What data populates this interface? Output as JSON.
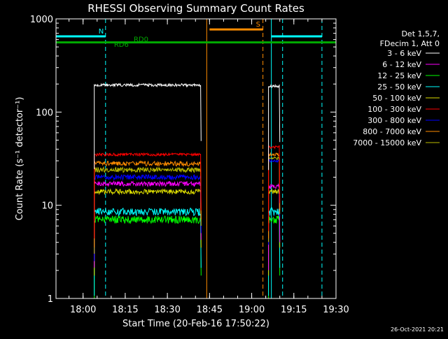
{
  "chart_data": {
    "type": "line",
    "title": "RHESSI Observing Summary Count Rates",
    "xlabel": "Start Time (20-Feb-16 17:50:22)",
    "ylabel": "Count Rate (s⁻¹ detector⁻¹)",
    "y_scale": "log",
    "ylim": [
      1,
      1000
    ],
    "xlim": [
      "17:50:22",
      "19:30"
    ],
    "x_ticks": [
      "18:00",
      "18:15",
      "18:30",
      "18:45",
      "19:00",
      "19:15",
      "19:30"
    ],
    "y_ticks": [
      "1",
      "10",
      "100",
      "1000"
    ],
    "grid": false,
    "footer": "26-Oct-2021 20:21",
    "legend": {
      "placement": "right",
      "header": [
        "Det 1,5,7,",
        "FDecim 1, Att 0"
      ],
      "entries": [
        {
          "label": "3 - 6 keV",
          "color": "#ffffff"
        },
        {
          "label": "6 - 12 keV",
          "color": "#ff00ff"
        },
        {
          "label": "12 - 25 keV",
          "color": "#00ff00"
        },
        {
          "label": "25 - 50 keV",
          "color": "#00ffff"
        },
        {
          "label": "50 - 100 keV",
          "color": "#dddd00"
        },
        {
          "label": "100 - 300 keV",
          "color": "#ff0000"
        },
        {
          "label": "300 - 800 keV",
          "color": "#0000ff"
        },
        {
          "label": "800 - 7000 keV",
          "color": "#ff8c00"
        },
        {
          "label": "7000 - 15000 keV",
          "color": "#bbbb00"
        }
      ]
    },
    "series": [
      {
        "name": "3 - 6 keV",
        "color": "#ffffff",
        "segments": [
          {
            "start": "18:04",
            "end": "18:42",
            "level": 195
          },
          {
            "start": "19:06",
            "end": "19:10",
            "level": 190
          }
        ]
      },
      {
        "name": "6 - 12 keV",
        "color": "#ff00ff",
        "segments": [
          {
            "start": "18:04",
            "end": "18:42",
            "level": 17
          },
          {
            "start": "19:06",
            "end": "19:10",
            "level": 16
          }
        ]
      },
      {
        "name": "12 - 25 keV",
        "color": "#00ff00",
        "segments": [
          {
            "start": "18:04",
            "end": "18:42",
            "level": 7
          },
          {
            "start": "19:06",
            "end": "19:10",
            "level": 7
          }
        ]
      },
      {
        "name": "25 - 50 keV",
        "color": "#00ffff",
        "segments": [
          {
            "start": "18:04",
            "end": "18:42",
            "level": 8.5
          },
          {
            "start": "19:06",
            "end": "19:10",
            "level": 8.5
          }
        ]
      },
      {
        "name": "50 - 100 keV",
        "color": "#dddd00",
        "segments": [
          {
            "start": "18:04",
            "end": "18:42",
            "level": 14
          },
          {
            "start": "19:06",
            "end": "19:10",
            "level": 14
          }
        ]
      },
      {
        "name": "100 - 300 keV",
        "color": "#ff0000",
        "segments": [
          {
            "start": "18:04",
            "end": "18:42",
            "level": 35
          },
          {
            "start": "19:06",
            "end": "19:10",
            "level": 42
          }
        ]
      },
      {
        "name": "300 - 800 keV",
        "color": "#0000ff",
        "segments": [
          {
            "start": "18:04",
            "end": "18:42",
            "level": 20
          },
          {
            "start": "19:06",
            "end": "19:10",
            "level": 30
          }
        ]
      },
      {
        "name": "800 - 7000 keV",
        "color": "#ff8c00",
        "segments": [
          {
            "start": "18:04",
            "end": "18:42",
            "level": 28
          },
          {
            "start": "19:06",
            "end": "19:10",
            "level": 35
          }
        ]
      },
      {
        "name": "7000 - 15000 keV",
        "color": "#bbbb00",
        "segments": [
          {
            "start": "18:04",
            "end": "18:42",
            "level": 24
          },
          {
            "start": "19:06",
            "end": "19:10",
            "level": 32
          }
        ]
      }
    ],
    "annotations": {
      "solid_lines": [
        {
          "time": "17:50:22",
          "color": "#00ffff"
        },
        {
          "time": "18:44",
          "color": "#ff8c00"
        },
        {
          "time": "19:07",
          "color": "#00ffff"
        }
      ],
      "dashed_lines": [
        {
          "time": "18:08",
          "color": "#00ffff"
        },
        {
          "time": "19:04",
          "color": "#ff8c00"
        },
        {
          "time": "19:11",
          "color": "#00ffff"
        },
        {
          "time": "19:25",
          "color": "#00ffff"
        }
      ],
      "flag_bars": [
        {
          "label": "N",
          "start": "17:50:22",
          "end": "18:08",
          "level": 650,
          "color": "#00ffff"
        },
        {
          "label": "S",
          "start": "18:45",
          "end": "19:04",
          "level": 770,
          "color": "#ff8c00"
        },
        {
          "label": "",
          "start": "19:07",
          "end": "19:25",
          "level": 650,
          "color": "#00ffff"
        },
        {
          "label": "",
          "start": "17:50:22",
          "end": "19:30",
          "level": 560,
          "color": "#00aa00"
        }
      ],
      "labels": [
        {
          "text": "RD0",
          "time": "18:18",
          "level": 570,
          "color": "#00aa00"
        },
        {
          "text": "RD6",
          "time": "18:11",
          "level": 500,
          "color": "#00aa00"
        }
      ]
    }
  }
}
